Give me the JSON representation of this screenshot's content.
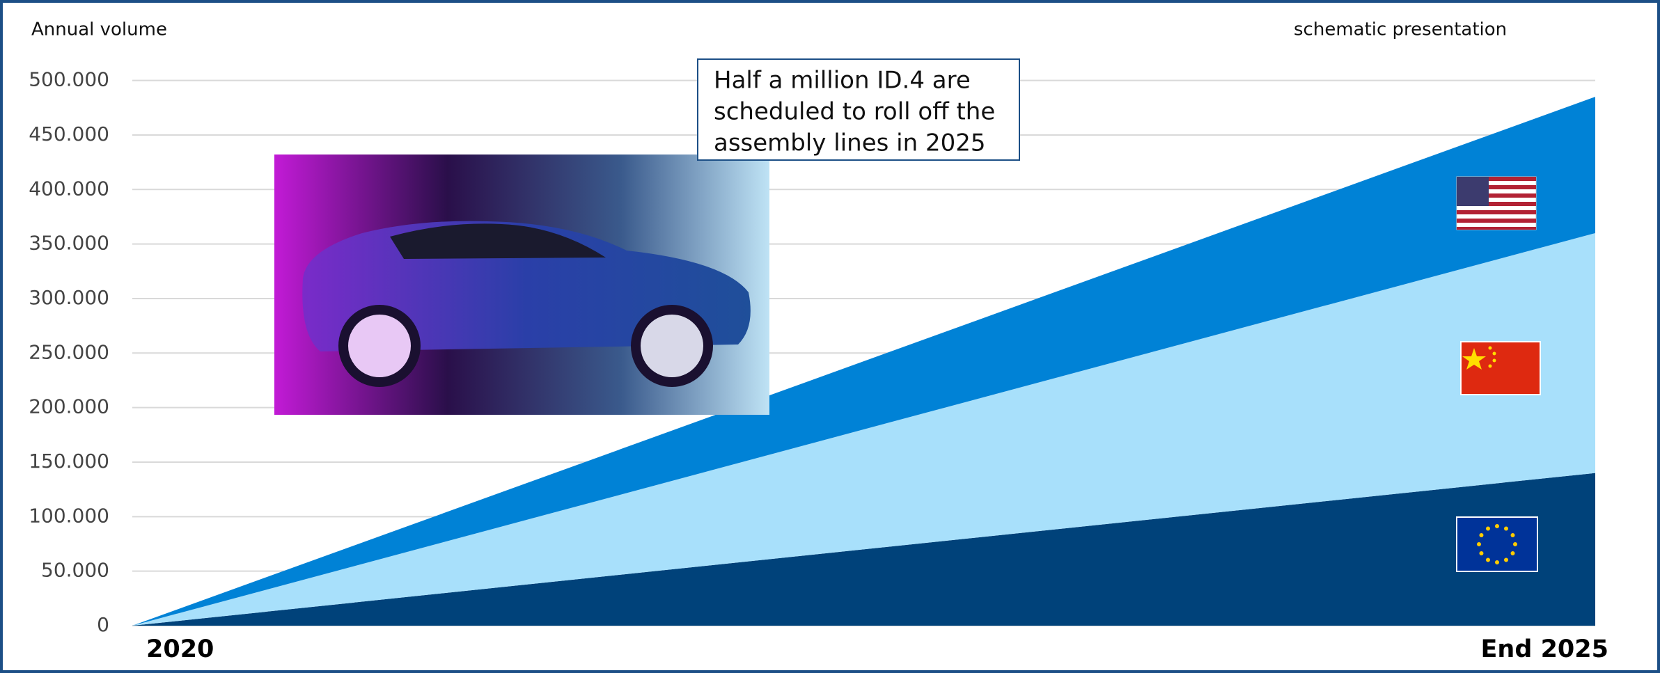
{
  "chart_data": {
    "type": "stacked_area",
    "y_label": "Annual volume",
    "subtitle": "schematic presentation",
    "annotation": [
      "Half a million ID.4 are",
      "scheduled to roll off the",
      "assembly lines in 2025"
    ],
    "categories": [
      "2020",
      "End 2025"
    ],
    "series": [
      {
        "color": "#00427a",
        "values": [
          0,
          140000
        ]
      },
      {
        "color": "#a8e0fb",
        "values": [
          0,
          220000
        ]
      },
      {
        "color": "#0082d6",
        "values": [
          0,
          125000
        ]
      }
    ],
    "ylim": [
      0,
      500000
    ],
    "yticks": [
      0,
      {
        "value": 50000,
        "label": "50.000"
      },
      {
        "value": 100000,
        "label": "100.000"
      },
      {
        "value": 150000,
        "label": "150.000"
      },
      {
        "value": 200000,
        "label": "200.000"
      },
      {
        "value": 250000,
        "label": "250.000"
      },
      {
        "value": 300000,
        "label": "300.000"
      },
      {
        "value": 350000,
        "label": "350.000"
      },
      {
        "value": 400000,
        "label": "400.000"
      },
      {
        "value": 450000,
        "label": "450.000"
      },
      {
        "value": 500000,
        "label": "500.000"
      }
    ],
    "grid": true
  }
}
